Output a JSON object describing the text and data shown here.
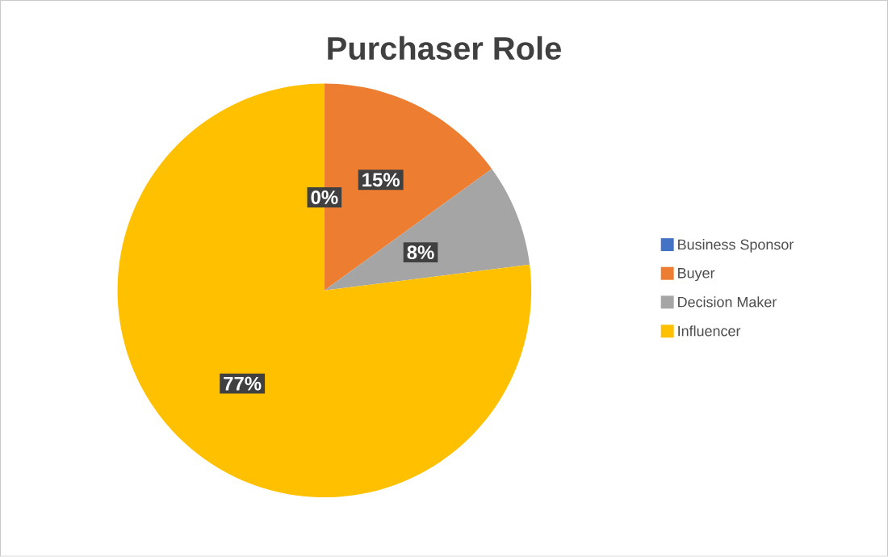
{
  "chart_data": {
    "type": "pie",
    "title": "Purchaser Role",
    "categories": [
      "Business Sponsor",
      "Buyer",
      "Decision Maker",
      "Influencer"
    ],
    "values": [
      0,
      15,
      8,
      77
    ],
    "value_labels": [
      "0%",
      "15%",
      "8%",
      "77%"
    ],
    "colors": [
      "#4472c4",
      "#ed7d31",
      "#a5a5a5",
      "#ffc000"
    ],
    "legend": "right"
  }
}
